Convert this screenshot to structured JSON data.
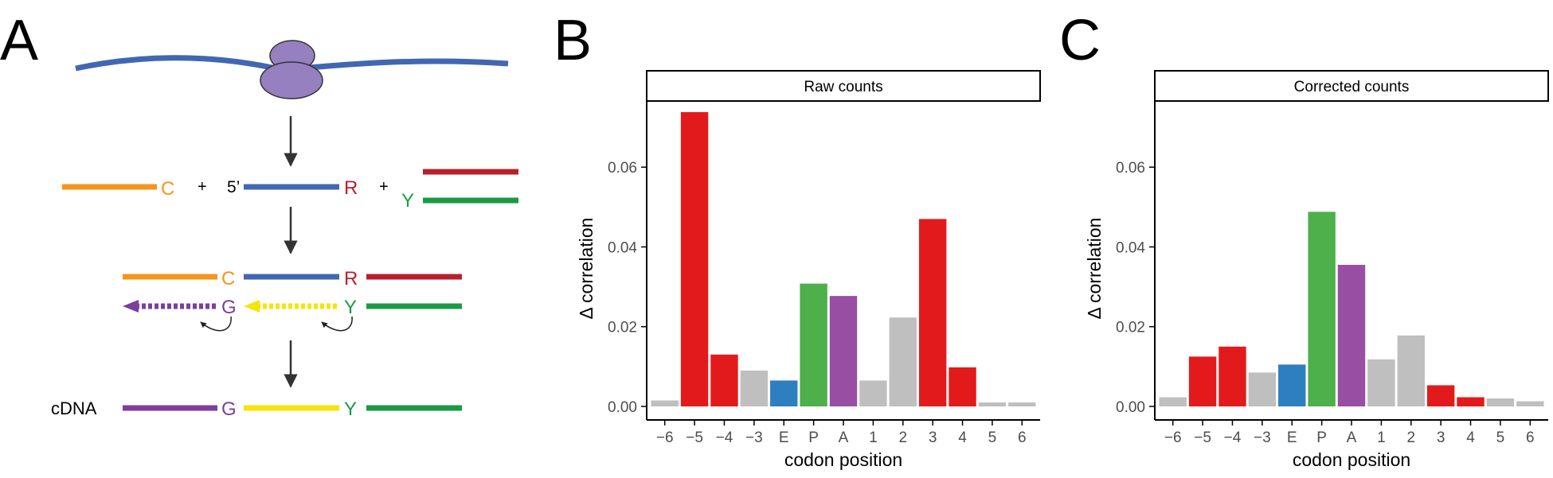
{
  "panels": {
    "a": {
      "letter": "A"
    },
    "b": {
      "letter": "B"
    },
    "c": {
      "letter": "C"
    }
  },
  "diagram": {
    "row1": {
      "c": "C",
      "plus1": "+",
      "five_prime": "5’",
      "r": "R",
      "plus2": "+",
      "y": "Y"
    },
    "row2": {
      "c": "C",
      "r": "R"
    },
    "row3": {
      "g": "G",
      "y": "Y"
    },
    "row4": {
      "cdna": "cDNA",
      "g": "G",
      "y": "Y"
    }
  },
  "colors": {
    "red": "#E31A1C",
    "gray": "#BFBFBF",
    "blue": "#2E7FC0",
    "green": "#4DB04A",
    "purple": "#984EA3",
    "mrna_blue": "#4267B2",
    "ribosome": "#9680C0",
    "orange": "#F7941D",
    "dark_red": "#B8202E",
    "primer_green": "#1B9A45",
    "cdna_purple": "#7B3F9E",
    "yellow": "#F5E50A"
  },
  "chart_data": [
    {
      "type": "bar",
      "title": "Raw counts",
      "xlabel": "codon position",
      "ylabel": "Δ correlation",
      "ylim": [
        0,
        0.074
      ],
      "yticks": [
        "0.00",
        "0.02",
        "0.04",
        "0.06"
      ],
      "ytick_values": [
        0,
        0.02,
        0.04,
        0.06
      ],
      "categories": [
        "−6",
        "−5",
        "−4",
        "−3",
        "E",
        "P",
        "A",
        "1",
        "2",
        "3",
        "4",
        "5",
        "6"
      ],
      "values": [
        0.0015,
        0.0738,
        0.013,
        0.009,
        0.0065,
        0.0308,
        0.0277,
        0.0065,
        0.0223,
        0.047,
        0.0098,
        0.001,
        0.001
      ],
      "bar_colors": [
        "gray",
        "red",
        "red",
        "gray",
        "blue",
        "green",
        "purple",
        "gray",
        "gray",
        "red",
        "red",
        "gray",
        "gray"
      ]
    },
    {
      "type": "bar",
      "title": "Corrected counts",
      "xlabel": "codon position",
      "ylabel": "Δ correlation",
      "ylim": [
        0,
        0.074
      ],
      "yticks": [
        "0.00",
        "0.02",
        "0.04",
        "0.06"
      ],
      "ytick_values": [
        0,
        0.02,
        0.04,
        0.06
      ],
      "categories": [
        "−6",
        "−5",
        "−4",
        "−3",
        "E",
        "P",
        "A",
        "1",
        "2",
        "3",
        "4",
        "5",
        "6"
      ],
      "values": [
        0.0023,
        0.0125,
        0.015,
        0.0085,
        0.0105,
        0.0488,
        0.0355,
        0.0118,
        0.0178,
        0.0053,
        0.0023,
        0.002,
        0.0013
      ],
      "bar_colors": [
        "gray",
        "red",
        "red",
        "gray",
        "blue",
        "green",
        "purple",
        "gray",
        "gray",
        "red",
        "red",
        "gray",
        "gray"
      ]
    }
  ]
}
